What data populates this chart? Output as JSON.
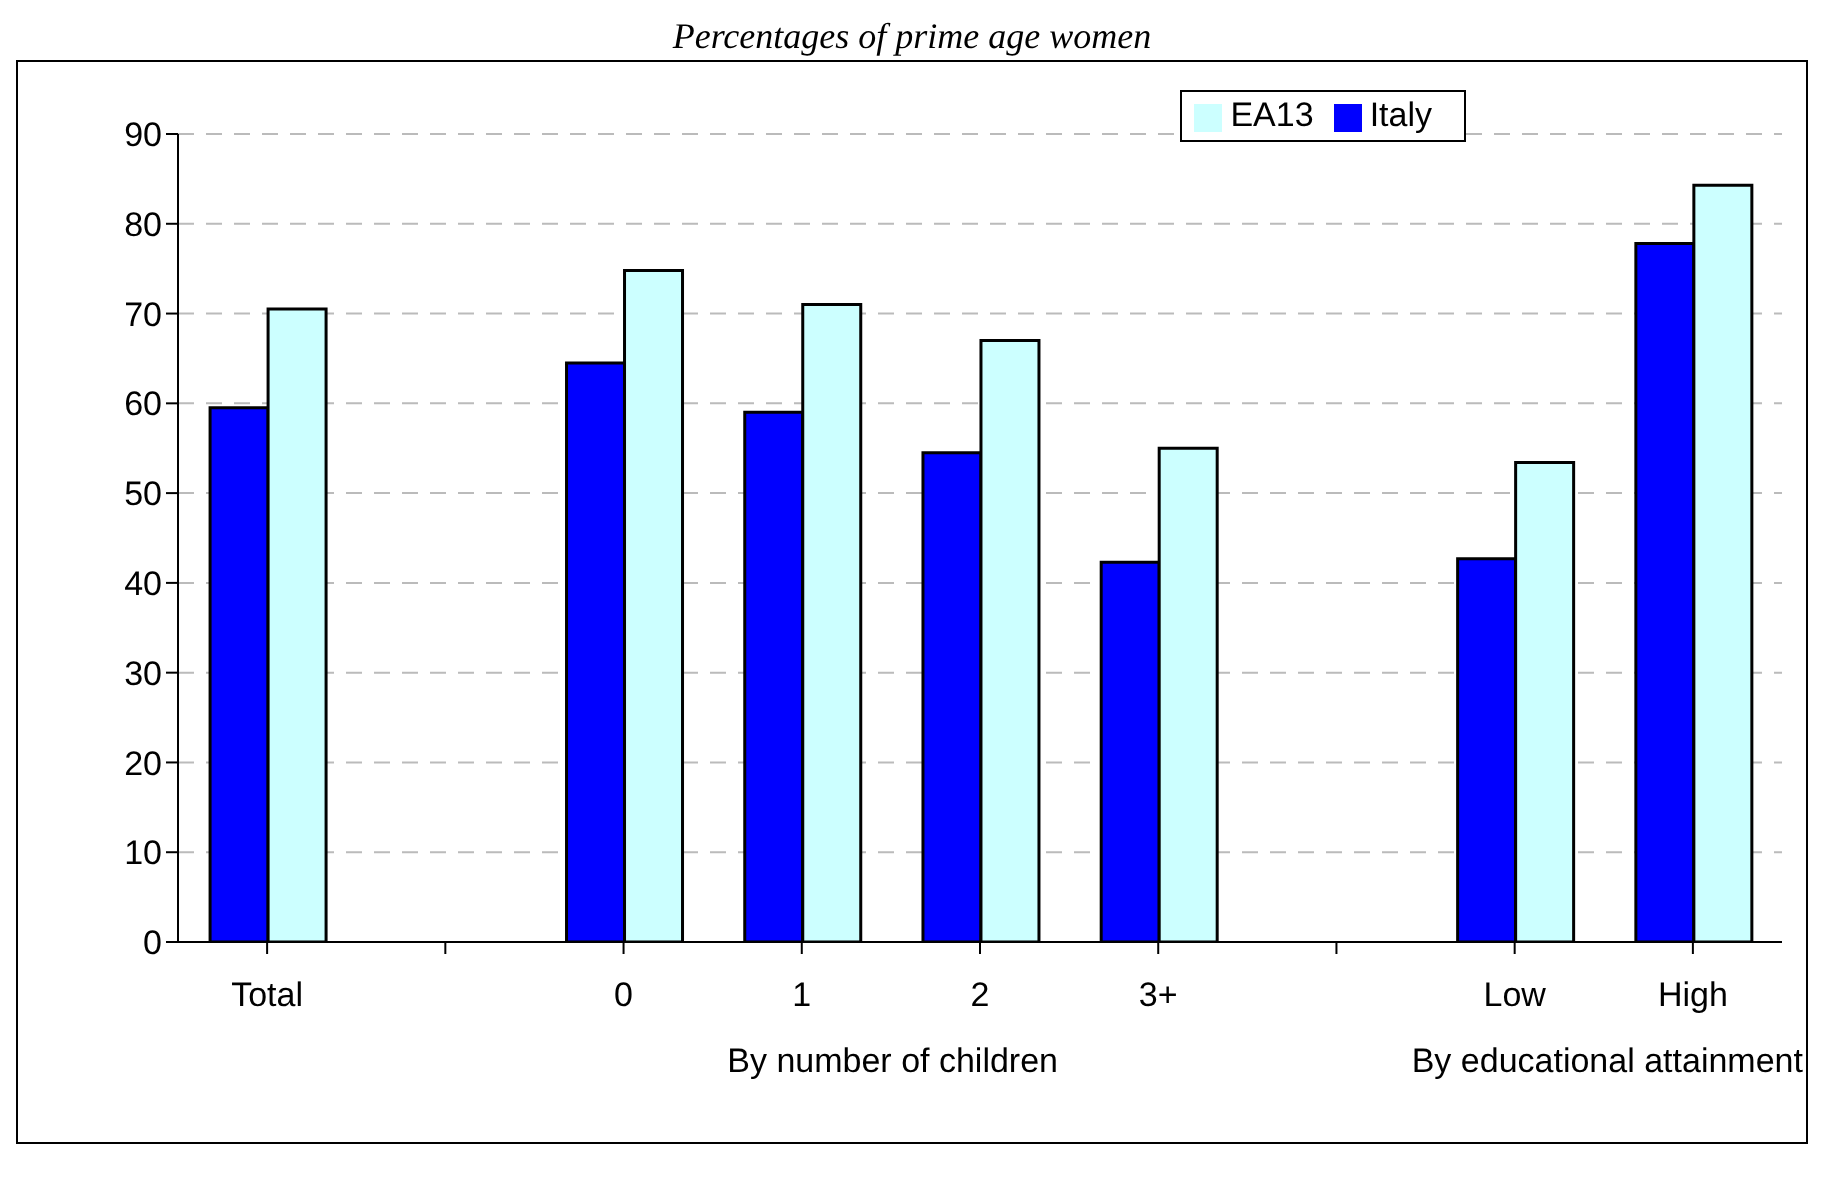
{
  "chart_data": {
    "type": "bar",
    "title": "Percentages of prime age women",
    "categories": [
      "Total",
      null,
      "0",
      "1",
      "2",
      "3+",
      null,
      "Low",
      "High"
    ],
    "series": [
      {
        "name": "Italy",
        "color": "#0000ff",
        "values": [
          59.5,
          null,
          64.5,
          59,
          54.5,
          42.3,
          null,
          42.7,
          77.8
        ]
      },
      {
        "name": "EA13",
        "color": "#ccffff",
        "values": [
          70.5,
          null,
          74.8,
          71,
          67,
          55,
          null,
          53.4,
          84.3
        ]
      }
    ],
    "ylim": [
      0,
      90
    ],
    "yticks": [
      0,
      10,
      20,
      30,
      40,
      50,
      60,
      70,
      80,
      90
    ],
    "grid": "y",
    "legend": "top right",
    "annotations": [
      "By number of children",
      "By educational attainment"
    ]
  }
}
